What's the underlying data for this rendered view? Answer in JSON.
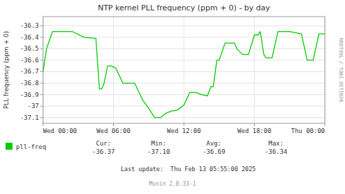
{
  "chart_data": {
    "type": "line",
    "title": "NTP kernel PLL frequency (ppm + 0) - by day",
    "y_label": "PLL frequency (ppm + 0)",
    "x": [
      0,
      0.3,
      0.8,
      1.5,
      2.5,
      3.5,
      4.5,
      4.8,
      5.0,
      5.2,
      5.5,
      5.8,
      6.2,
      6.8,
      7.0,
      7.3,
      7.8,
      8.5,
      9.0,
      9.5,
      10.0,
      10.5,
      11.0,
      11.2,
      11.5,
      12.0,
      12.5,
      13.0,
      13.5,
      14.0,
      14.3,
      14.5,
      14.8,
      15.0,
      15.5,
      16.0,
      16.3,
      16.5,
      17.0,
      17.5,
      18.0,
      18.3,
      18.5,
      18.8,
      19.0,
      19.5,
      20.0,
      20.5,
      21.0,
      21.5,
      22.0,
      22.5,
      23.0,
      23.5,
      24.0
    ],
    "series": [
      {
        "name": "pll-freq",
        "color": "#00cc00",
        "values": [
          -36.7,
          -36.5,
          -36.35,
          -36.35,
          -36.35,
          -36.4,
          -36.41,
          -36.85,
          -36.85,
          -36.8,
          -36.65,
          -36.65,
          -36.67,
          -36.8,
          -36.8,
          -36.8,
          -36.8,
          -36.95,
          -37.02,
          -37.1,
          -37.1,
          -37.06,
          -37.04,
          -37.04,
          -37.03,
          -36.99,
          -36.88,
          -36.88,
          -36.9,
          -36.91,
          -36.83,
          -36.83,
          -36.6,
          -36.6,
          -36.45,
          -36.45,
          -36.45,
          -36.5,
          -36.55,
          -36.55,
          -36.38,
          -36.38,
          -36.35,
          -36.55,
          -36.58,
          -36.58,
          -36.35,
          -36.35,
          -36.35,
          -36.36,
          -36.37,
          -36.6,
          -36.6,
          -36.37,
          -36.37
        ]
      }
    ],
    "xlim": [
      0,
      24
    ],
    "xticks": [
      {
        "value": 0,
        "label": "Wed 00:00"
      },
      {
        "value": 6,
        "label": "Wed 06:00"
      },
      {
        "value": 12,
        "label": "Wed 12:00"
      },
      {
        "value": 18,
        "label": "Wed 18:00"
      },
      {
        "value": 24,
        "label": "Thu 00:00"
      }
    ],
    "ylim": [
      -37.15,
      -36.22
    ],
    "yticks": [
      -37.1,
      -37.0,
      -36.9,
      -36.8,
      -36.7,
      -36.6,
      -36.5,
      -36.4,
      -36.3
    ],
    "grid": true,
    "annotations": [
      "Cur:",
      "-36.37",
      "Min:",
      "-37.10",
      "Avg:",
      "-36.69",
      "Max:",
      "-36.34",
      "Last update:  Thu Feb 13 05:55:00 2025",
      "Munin 2.0.33-1",
      "RRDTOOL / TOBI OETIKER"
    ]
  }
}
